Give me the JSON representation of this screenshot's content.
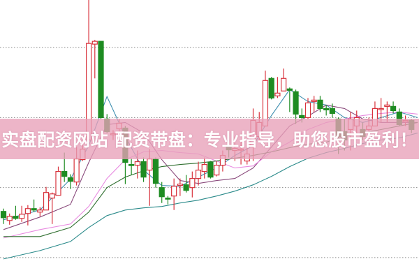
{
  "banner": {
    "text": "实盘配资网站 配资带盘：专业指导，助您股市盈利！"
  },
  "colors": {
    "up": "#d8323c",
    "down": "#1e8c22",
    "banner": "#e8a0b8",
    "grid": "#8a8a8a"
  },
  "chart_data": {
    "type": "candlestick",
    "title": "",
    "xlabel": "",
    "ylabel": "",
    "ylim": [
      0,
      400
    ],
    "grid": {
      "horizontal": true,
      "style": "dotted",
      "levels": [
        332,
        232,
        132,
        32
      ]
    },
    "candles_ohlc": [
      [
        98,
        102,
        80,
        89
      ],
      [
        85,
        95,
        79,
        91
      ],
      [
        91,
        106,
        86,
        88
      ],
      [
        88,
        106,
        83,
        94
      ],
      [
        95,
        107,
        78,
        102
      ],
      [
        102,
        115,
        97,
        100
      ],
      [
        97,
        104,
        91,
        100
      ],
      [
        100,
        133,
        100,
        125
      ],
      [
        117,
        125,
        80,
        123
      ],
      [
        121,
        162,
        121,
        155
      ],
      [
        155,
        182,
        140,
        148
      ],
      [
        146,
        151,
        130,
        141
      ],
      [
        140,
        190,
        135,
        173
      ],
      [
        172,
        200,
        170,
        187
      ],
      [
        200,
        400,
        200,
        338
      ],
      [
        337,
        343,
        288,
        341
      ],
      [
        341,
        341,
        230,
        232
      ],
      [
        230,
        237,
        210,
        212
      ],
      [
        208,
        214,
        200,
        209
      ],
      [
        216,
        230,
        205,
        224
      ],
      [
        217,
        220,
        137,
        168
      ],
      [
        165,
        174,
        150,
        164
      ],
      [
        164,
        185,
        145,
        169
      ],
      [
        169,
        175,
        140,
        147
      ],
      [
        157,
        187,
        106,
        173
      ],
      [
        173,
        175,
        132,
        138
      ],
      [
        132,
        140,
        110,
        119
      ],
      [
        117,
        120,
        108,
        116
      ],
      [
        120,
        145,
        100,
        134
      ],
      [
        135,
        145,
        120,
        137
      ],
      [
        136,
        150,
        125,
        128
      ],
      [
        132,
        155,
        118,
        145
      ],
      [
        145,
        169,
        135,
        157
      ],
      [
        155,
        175,
        145,
        165
      ],
      [
        168,
        170,
        145,
        147
      ],
      [
        150,
        170,
        148,
        164
      ],
      [
        164,
        185,
        155,
        178
      ],
      [
        190,
        210,
        175,
        186
      ],
      [
        185,
        205,
        170,
        188
      ],
      [
        186,
        200,
        165,
        187
      ],
      [
        170,
        195,
        165,
        180
      ],
      [
        190,
        245,
        170,
        228
      ],
      [
        205,
        240,
        200,
        225
      ],
      [
        220,
        299,
        220,
        285
      ],
      [
        288,
        290,
        258,
        260
      ],
      [
        263,
        290,
        260,
        267
      ],
      [
        270,
        302,
        270,
        288
      ],
      [
        273,
        275,
        240,
        271
      ],
      [
        269,
        272,
        223,
        237
      ],
      [
        235,
        245,
        225,
        232
      ],
      [
        232,
        260,
        230,
        253
      ],
      [
        255,
        263,
        240,
        257
      ],
      [
        257,
        263,
        240,
        245
      ],
      [
        245,
        250,
        235,
        243
      ],
      [
        245,
        252,
        232,
        238
      ],
      [
        230,
        232,
        180,
        205
      ],
      [
        212,
        230,
        185,
        200
      ],
      [
        215,
        240,
        185,
        230
      ],
      [
        220,
        242,
        210,
        232
      ],
      [
        215,
        225,
        200,
        205
      ],
      [
        215,
        232,
        210,
        220
      ],
      [
        220,
        255,
        220,
        245
      ],
      [
        244,
        260,
        225,
        245
      ],
      [
        248,
        255,
        225,
        250
      ],
      [
        248,
        255,
        238,
        242
      ],
      [
        240,
        245,
        220,
        222
      ],
      [
        226,
        235,
        220,
        228
      ],
      [
        228,
        230,
        210,
        215
      ]
    ],
    "moving_averages": {
      "sample_bar_index": [
        0,
        6,
        11,
        14,
        17,
        20,
        23,
        26,
        29,
        32,
        35,
        38,
        41,
        44,
        47,
        50,
        53,
        56,
        59,
        62,
        65,
        68
      ],
      "lines": [
        {
          "color": "#3f8fb0",
          "values": [
            86,
            100,
            144,
            192,
            262,
            205,
            157,
            135,
            134,
            147,
            160,
            178,
            192,
            235,
            272,
            255,
            250,
            232,
            225,
            232,
            240,
            232
          ]
        },
        {
          "color": "#8a4a7c",
          "values": [
            72,
            90,
            108,
            168,
            222,
            225,
            210,
            172,
            142,
            138,
            142,
            145,
            160,
            190,
            220,
            234,
            250,
            245,
            230,
            225,
            225,
            225
          ]
        },
        {
          "color": "#e88ae0",
          "values": [
            60,
            72,
            80,
            105,
            145,
            172,
            183,
            185,
            182,
            180,
            170,
            160,
            163,
            183,
            197,
            215,
            225,
            230,
            235,
            238,
            240,
            237
          ]
        },
        {
          "color": "#2f6f2f",
          "values": [
            62,
            62,
            75,
            97,
            132,
            147,
            156,
            162,
            165,
            167,
            170,
            174,
            178,
            183,
            189,
            194,
            197,
            205,
            210,
            215,
            220,
            225
          ]
        },
        {
          "color": "#2a8a8a",
          "values": [
            30,
            42,
            55,
            75,
            92,
            100,
            103,
            105,
            110,
            114,
            120,
            127,
            136,
            148,
            162,
            174,
            182,
            188,
            195,
            200,
            203,
            210
          ]
        }
      ]
    }
  }
}
